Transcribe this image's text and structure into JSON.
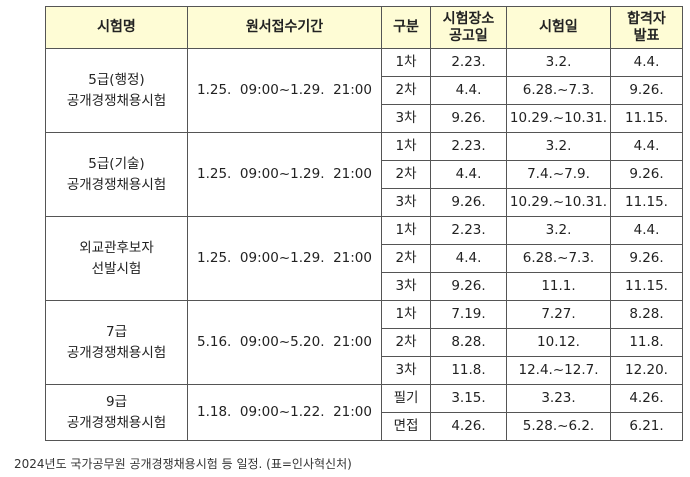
{
  "table": {
    "headers": {
      "exam": "시험명",
      "period": "원서접수기간",
      "stage": "구분",
      "notice": [
        "시험장소",
        "공고일"
      ],
      "exam_date": "시험일",
      "result": [
        "합격자",
        "발표"
      ]
    },
    "groups": [
      {
        "name": [
          "5급(행정)",
          "공개경쟁채용시험"
        ],
        "period": "1.25.  09:00~1.29.  21:00",
        "rows": [
          {
            "stage": "1차",
            "notice": "2.23.",
            "exam_date": "3.2.",
            "result": "4.4."
          },
          {
            "stage": "2차",
            "notice": "4.4.",
            "exam_date": "6.28.~7.3.",
            "result": "9.26."
          },
          {
            "stage": "3차",
            "notice": "9.26.",
            "exam_date": "10.29.~10.31.",
            "result": "11.15."
          }
        ]
      },
      {
        "name": [
          "5급(기술)",
          "공개경쟁채용시험"
        ],
        "period": "1.25.  09:00~1.29.  21:00",
        "rows": [
          {
            "stage": "1차",
            "notice": "2.23.",
            "exam_date": "3.2.",
            "result": "4.4."
          },
          {
            "stage": "2차",
            "notice": "4.4.",
            "exam_date": "7.4.~7.9.",
            "result": "9.26."
          },
          {
            "stage": "3차",
            "notice": "9.26.",
            "exam_date": "10.29.~10.31.",
            "result": "11.15."
          }
        ]
      },
      {
        "name": [
          "외교관후보자",
          "선발시험"
        ],
        "period": "1.25.  09:00~1.29.  21:00",
        "rows": [
          {
            "stage": "1차",
            "notice": "2.23.",
            "exam_date": "3.2.",
            "result": "4.4."
          },
          {
            "stage": "2차",
            "notice": "4.4.",
            "exam_date": "6.28.~7.3.",
            "result": "9.26."
          },
          {
            "stage": "3차",
            "notice": "9.26.",
            "exam_date": "11.1.",
            "result": "11.15."
          }
        ]
      },
      {
        "name": [
          "7급",
          "공개경쟁채용시험"
        ],
        "period": "5.16.  09:00~5.20.  21:00",
        "rows": [
          {
            "stage": "1차",
            "notice": "7.19.",
            "exam_date": "7.27.",
            "result": "8.28."
          },
          {
            "stage": "2차",
            "notice": "8.28.",
            "exam_date": "10.12.",
            "result": "11.8."
          },
          {
            "stage": "3차",
            "notice": "11.8.",
            "exam_date": "12.4.~12.7.",
            "result": "12.20."
          }
        ]
      },
      {
        "name": [
          "9급",
          "공개경쟁채용시험"
        ],
        "period": "1.18.  09:00~1.22.  21:00",
        "rows": [
          {
            "stage": "필기",
            "notice": "3.15.",
            "exam_date": "3.23.",
            "result": "4.26."
          },
          {
            "stage": "면접",
            "notice": "4.26.",
            "exam_date": "5.28.~6.2.",
            "result": "6.21."
          }
        ]
      }
    ]
  },
  "caption": "2024년도 국가공무원 공개경쟁채용시험 등 일정. (표=인사혁신처)"
}
